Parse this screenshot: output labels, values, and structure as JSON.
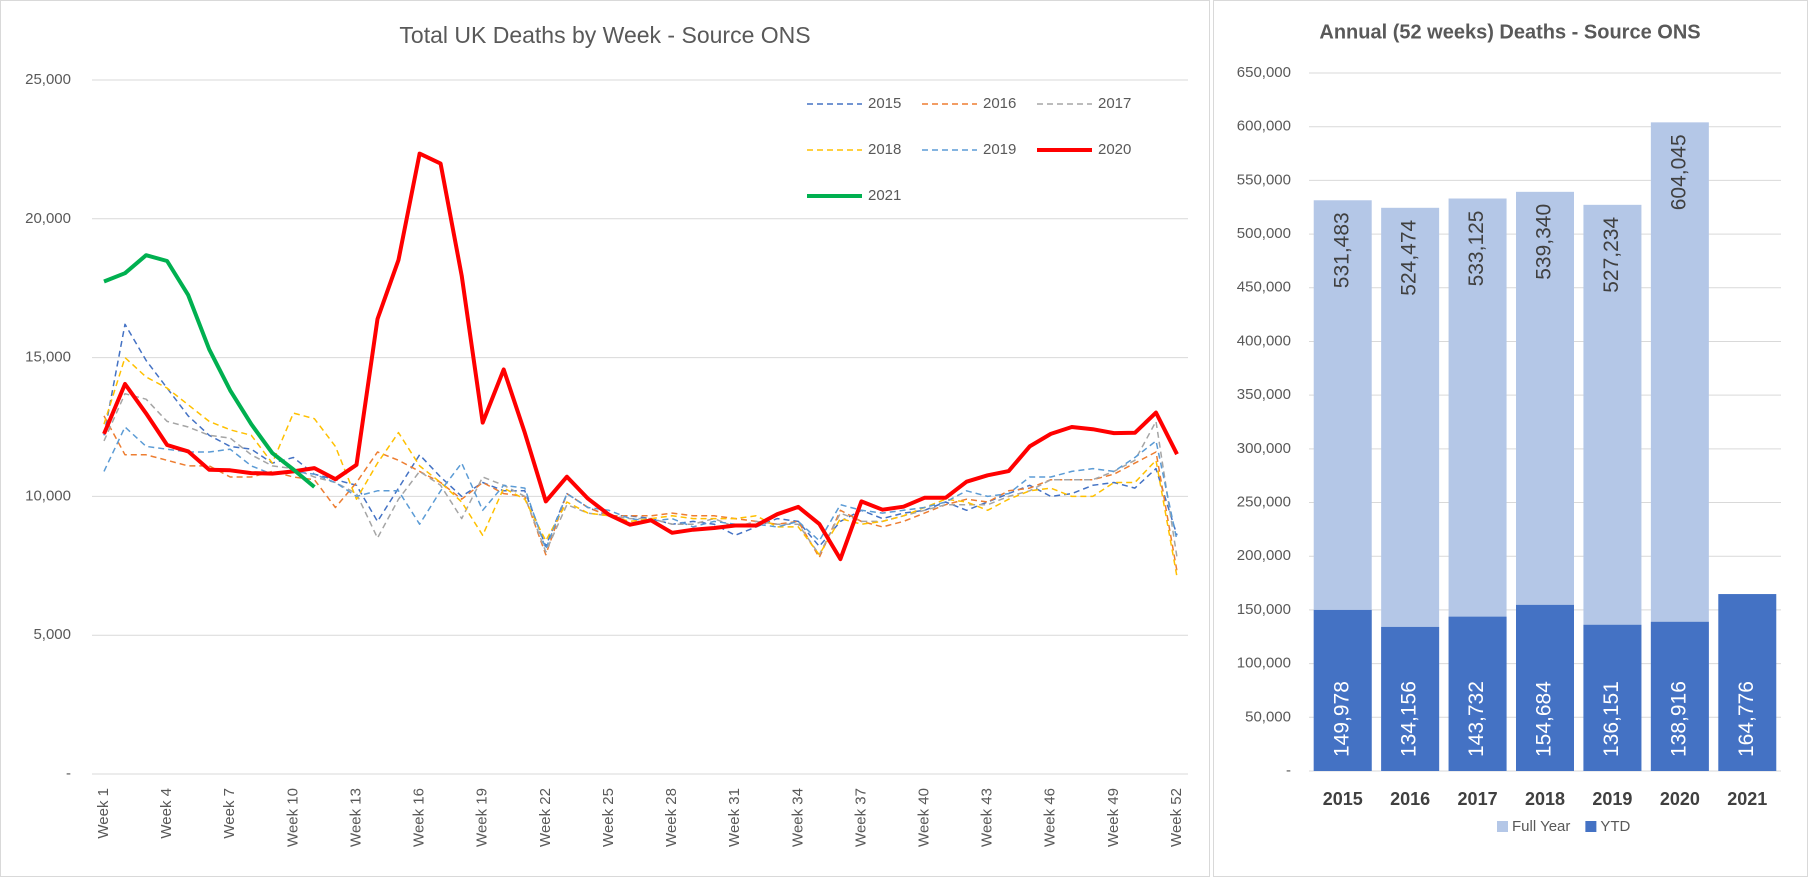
{
  "chart_data": [
    {
      "type": "line",
      "title": "Total UK Deaths by Week - Source ONS",
      "categories": [
        "Week 1",
        null,
        null,
        "Week 4",
        null,
        null,
        "Week 7",
        null,
        null,
        "Week 10",
        null,
        null,
        "Week 13",
        null,
        null,
        "Week 16",
        null,
        null,
        "Week 19",
        null,
        null,
        "Week 22",
        null,
        null,
        "Week 25",
        null,
        null,
        "Week 28",
        null,
        null,
        "Week 31",
        null,
        null,
        "Week 34",
        null,
        null,
        "Week 37",
        null,
        null,
        "Week 40",
        null,
        null,
        "Week 43",
        null,
        null,
        "Week 46",
        null,
        null,
        "Week 49",
        null,
        null,
        "Week 52"
      ],
      "ylim": [
        0,
        25000
      ],
      "yticks": [
        {
          "value": 0,
          "label": "-"
        },
        {
          "value": 5000,
          "label": "5,000"
        },
        {
          "value": 10000,
          "label": "10,000"
        },
        {
          "value": 15000,
          "label": "15,000"
        },
        {
          "value": 20000,
          "label": "20,000"
        },
        {
          "value": 25000,
          "label": "25,000"
        }
      ],
      "grid": true,
      "legend": "top-right",
      "series": [
        {
          "name": "2015",
          "color": "#4472c4",
          "style": "dashed",
          "values": [
            12200,
            16200,
            14900,
            13900,
            12900,
            12200,
            11800,
            11700,
            11200,
            11400,
            10800,
            10600,
            10400,
            9100,
            10300,
            11500,
            10700,
            10000,
            10500,
            10200,
            10200,
            8200,
            10100,
            9600,
            9300,
            9300,
            9200,
            9000,
            9100,
            9000,
            8600,
            8900,
            9200,
            9100,
            8200,
            9100,
            9500,
            9200,
            9400,
            9500,
            9800,
            9500,
            9800,
            10100,
            10400,
            10000,
            10100,
            10400,
            10500,
            10300,
            11000,
            8600
          ]
        },
        {
          "name": "2016",
          "color": "#ed7d31",
          "style": "dashed",
          "values": [
            12900,
            11500,
            11500,
            11300,
            11100,
            11100,
            10700,
            10700,
            10900,
            10700,
            10600,
            9600,
            10500,
            11600,
            11300,
            10900,
            10500,
            9900,
            10500,
            10100,
            10000,
            7900,
            10100,
            9600,
            9300,
            9300,
            9300,
            9400,
            9300,
            9300,
            9200,
            9100,
            9000,
            9100,
            7800,
            9500,
            9100,
            8900,
            9100,
            9400,
            9700,
            9900,
            9800,
            10200,
            10300,
            10600,
            10600,
            10600,
            10800,
            11200,
            11600,
            7300
          ]
        },
        {
          "name": "2017",
          "color": "#a5a5a5",
          "style": "dashed",
          "values": [
            12000,
            13700,
            13500,
            12700,
            12500,
            12200,
            12100,
            11500,
            11100,
            11000,
            10700,
            10500,
            10100,
            8500,
            9900,
            10900,
            10400,
            9200,
            10700,
            10400,
            10000,
            8000,
            9700,
            9400,
            9300,
            9200,
            9200,
            9000,
            9000,
            9200,
            8900,
            9100,
            9000,
            9000,
            7900,
            9400,
            9100,
            9100,
            9300,
            9500,
            9700,
            9700,
            9700,
            10000,
            10200,
            10600,
            10600,
            10600,
            10900,
            11300,
            12700,
            7800
          ]
        },
        {
          "name": "2018",
          "color": "#ffc000",
          "style": "dashed",
          "values": [
            12600,
            15000,
            14300,
            13900,
            13300,
            12700,
            12400,
            12200,
            11200,
            13000,
            12800,
            11800,
            9900,
            11200,
            12300,
            11100,
            10500,
            9800,
            8600,
            10300,
            9900,
            8400,
            9800,
            9400,
            9300,
            9100,
            9200,
            9300,
            9200,
            9200,
            9200,
            9300,
            8900,
            8900,
            7900,
            9200,
            9000,
            9100,
            9300,
            9600,
            9900,
            9800,
            9500,
            9900,
            10200,
            10300,
            10000,
            10000,
            10500,
            10500,
            11300,
            7100
          ]
        },
        {
          "name": "2019",
          "color": "#5b9bd5",
          "style": "dashed",
          "values": [
            10900,
            12500,
            11800,
            11700,
            11600,
            11600,
            11700,
            11100,
            10800,
            10900,
            10800,
            10500,
            10000,
            10200,
            10200,
            9000,
            10200,
            11200,
            9500,
            10400,
            10300,
            8100,
            10100,
            9600,
            9500,
            9200,
            9100,
            9200,
            8900,
            9100,
            9000,
            9000,
            8900,
            9100,
            8400,
            9700,
            9500,
            9400,
            9500,
            9600,
            9800,
            10200,
            10000,
            10100,
            10700,
            10700,
            10900,
            11000,
            10900,
            11400,
            12000,
            8400
          ]
        },
        {
          "name": "2020",
          "color": "#ff0000",
          "style": "solid",
          "values": [
            12250,
            14050,
            12990,
            11850,
            11620,
            10960,
            10940,
            10840,
            10820,
            10900,
            11020,
            10620,
            11140,
            16390,
            18520,
            22350,
            21990,
            17950,
            12660,
            14570,
            12290,
            9820,
            10710,
            9920,
            9340,
            8980,
            9140,
            8690,
            8800,
            8860,
            8950,
            8950,
            9360,
            9620,
            9010,
            7740,
            9820,
            9520,
            9630,
            9950,
            9950,
            10530,
            10760,
            10910,
            11800,
            12250,
            12500,
            12420,
            12280,
            12290,
            13020,
            11520
          ]
        },
        {
          "name": "2021",
          "color": "#00b050",
          "style": "solid",
          "values": [
            17740,
            18040,
            18690,
            18480,
            17250,
            15300,
            13820,
            12600,
            11560,
            10970,
            10340,
            null,
            null,
            null,
            null,
            null,
            null,
            null,
            null,
            null,
            null,
            null,
            null,
            null,
            null,
            null,
            null,
            null,
            null,
            null,
            null,
            null,
            null,
            null,
            null,
            null,
            null,
            null,
            null,
            null,
            null,
            null,
            null,
            null,
            null,
            null,
            null,
            null,
            null,
            null,
            null,
            null
          ]
        }
      ]
    },
    {
      "type": "bar",
      "title": "Annual  (52 weeks) Deaths - Source ONS",
      "categories": [
        "2015",
        "2016",
        "2017",
        "2018",
        "2019",
        "2020",
        "2021"
      ],
      "ylim": [
        0,
        650000
      ],
      "yticks": [
        {
          "value": 0,
          "label": "-"
        },
        {
          "value": 50000,
          "label": "50,000"
        },
        {
          "value": 100000,
          "label": "100,000"
        },
        {
          "value": 150000,
          "label": "150,000"
        },
        {
          "value": 200000,
          "label": "200,000"
        },
        {
          "value": 250000,
          "label": "250,000"
        },
        {
          "value": 300000,
          "label": "300,000"
        },
        {
          "value": 350000,
          "label": "350,000"
        },
        {
          "value": 400000,
          "label": "400,000"
        },
        {
          "value": 450000,
          "label": "450,000"
        },
        {
          "value": 500000,
          "label": "500,000"
        },
        {
          "value": 550000,
          "label": "550,000"
        },
        {
          "value": 600000,
          "label": "600,000"
        },
        {
          "value": 650000,
          "label": "650,000"
        }
      ],
      "grid": true,
      "legend": "bottom",
      "overlap": true,
      "series": [
        {
          "name": "Full Year",
          "color": "#b4c7e7",
          "label_color": "#404040",
          "values": [
            531483,
            524474,
            533125,
            539340,
            527234,
            604045,
            null
          ],
          "value_labels": [
            "531,483",
            "524,474",
            "533,125",
            "539,340",
            "527,234",
            "604,045",
            null
          ]
        },
        {
          "name": "YTD",
          "color": "#4472c4",
          "label_color": "#ffffff",
          "values": [
            149978,
            134156,
            143732,
            154684,
            136151,
            138916,
            164776
          ],
          "value_labels": [
            "149,978",
            "134,156",
            "143,732",
            "154,684",
            "136,151",
            "138,916",
            "164,776"
          ]
        }
      ]
    }
  ]
}
